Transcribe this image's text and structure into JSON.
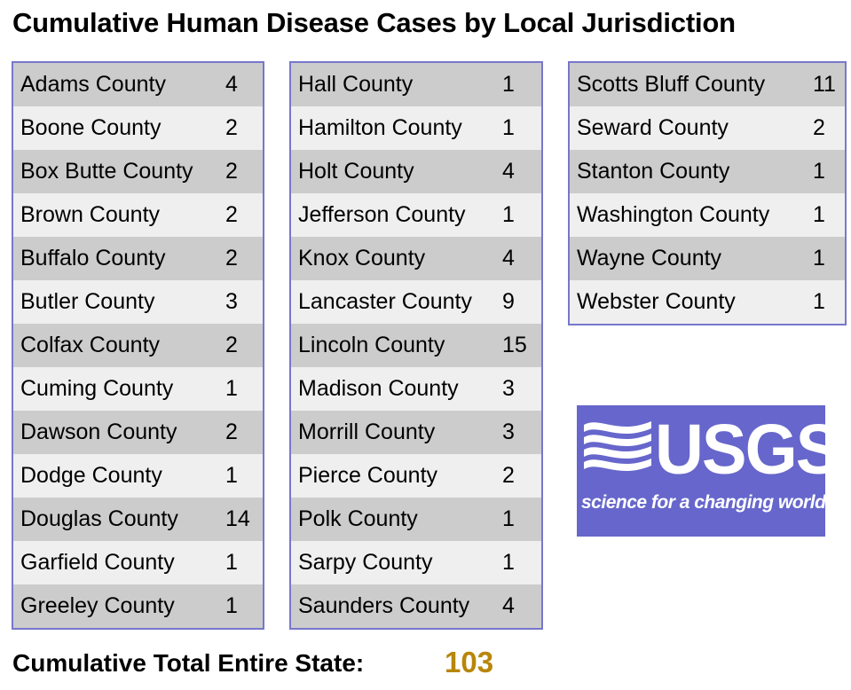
{
  "title": "Cumulative Human Disease Cases by Local Jurisdiction",
  "columns": [
    [
      {
        "name": "Adams County",
        "count": "4"
      },
      {
        "name": "Boone County",
        "count": "2"
      },
      {
        "name": "Box Butte County",
        "count": "2"
      },
      {
        "name": "Brown County",
        "count": "2"
      },
      {
        "name": "Buffalo County",
        "count": "2"
      },
      {
        "name": "Butler County",
        "count": "3"
      },
      {
        "name": "Colfax County",
        "count": "2"
      },
      {
        "name": "Cuming County",
        "count": "1"
      },
      {
        "name": "Dawson County",
        "count": "2"
      },
      {
        "name": "Dodge County",
        "count": "1"
      },
      {
        "name": "Douglas County",
        "count": "14"
      },
      {
        "name": "Garfield County",
        "count": "1"
      },
      {
        "name": "Greeley County",
        "count": "1"
      }
    ],
    [
      {
        "name": "Hall County",
        "count": "1"
      },
      {
        "name": "Hamilton County",
        "count": "1"
      },
      {
        "name": "Holt County",
        "count": "4"
      },
      {
        "name": "Jefferson County",
        "count": "1"
      },
      {
        "name": "Knox County",
        "count": "4"
      },
      {
        "name": "Lancaster County",
        "count": "9"
      },
      {
        "name": "Lincoln County",
        "count": "15"
      },
      {
        "name": "Madison County",
        "count": "3"
      },
      {
        "name": "Morrill County",
        "count": "3"
      },
      {
        "name": "Pierce County",
        "count": "2"
      },
      {
        "name": "Polk County",
        "count": "1"
      },
      {
        "name": "Sarpy County",
        "count": "1"
      },
      {
        "name": "Saunders County",
        "count": "4"
      }
    ],
    [
      {
        "name": "Scotts Bluff County",
        "count": "11"
      },
      {
        "name": "Seward County",
        "count": "2"
      },
      {
        "name": "Stanton County",
        "count": "1"
      },
      {
        "name": "Washington County",
        "count": "1"
      },
      {
        "name": "Wayne County",
        "count": "1"
      },
      {
        "name": "Webster County",
        "count": "1"
      }
    ]
  ],
  "logo": {
    "icon": "usgs-wave-icon",
    "letters": "USGS",
    "tagline": "science for a changing world",
    "background": "#6666cc"
  },
  "total": {
    "label": "Cumulative Total Entire State:",
    "value": "103",
    "value_color": "#b8860b"
  },
  "colors": {
    "row_dark": "#cccccc",
    "row_light": "#efefef",
    "table_border": "#7777cc"
  }
}
